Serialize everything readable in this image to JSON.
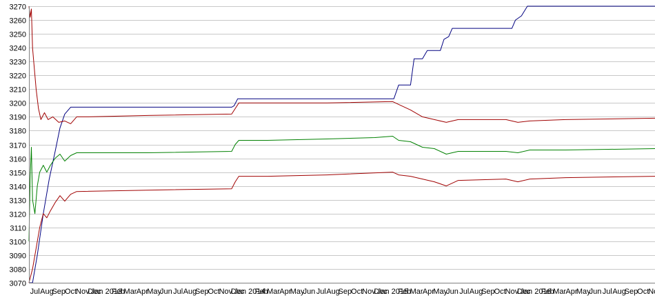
{
  "chart_data": {
    "type": "line",
    "title": "",
    "xlabel": "",
    "ylabel": "",
    "ylim": [
      3070,
      3270
    ],
    "ytick_step": 10,
    "grid": "horizontal",
    "legend": "none",
    "x_tick_labels": [
      "Jul",
      "Aug",
      "Sep",
      "Oct",
      "Nov",
      "Dec",
      "Jan 2013",
      "Feb",
      "Mar",
      "Apr",
      "May",
      "Jun",
      "Jul",
      "Aug",
      "Sep",
      "Oct",
      "Nov",
      "Dec",
      "Jan 2014",
      "Feb",
      "Mar",
      "Apr",
      "May",
      "Jun",
      "Jul",
      "Aug",
      "Sep",
      "Oct",
      "Nov",
      "Dec",
      "Jan 2015",
      "Feb",
      "Mar",
      "Apr",
      "May",
      "Jun",
      "Jul",
      "Aug",
      "Sep",
      "Oct",
      "Nov",
      "Dec",
      "Jan 2016",
      "Feb",
      "Mar",
      "Apr",
      "May",
      "Jun",
      "Jul",
      "Aug",
      "Sep",
      "Oct",
      "Nov"
    ],
    "x_range": [
      0,
      52.5
    ],
    "series": [
      {
        "color": "#000080",
        "points": [
          [
            0,
            3070
          ],
          [
            0.3,
            3070
          ],
          [
            0.7,
            3090
          ],
          [
            1.2,
            3120
          ],
          [
            1.7,
            3145
          ],
          [
            2.2,
            3165
          ],
          [
            2.6,
            3182
          ],
          [
            3.0,
            3192
          ],
          [
            3.5,
            3197
          ],
          [
            4,
            3197
          ],
          [
            10,
            3197
          ],
          [
            17,
            3197
          ],
          [
            17.2,
            3198
          ],
          [
            17.5,
            3203
          ],
          [
            18,
            3203
          ],
          [
            28,
            3203
          ],
          [
            30.6,
            3203
          ],
          [
            31,
            3213
          ],
          [
            32,
            3213
          ],
          [
            32.3,
            3232
          ],
          [
            33,
            3232
          ],
          [
            33.4,
            3238
          ],
          [
            34.5,
            3238
          ],
          [
            34.8,
            3246
          ],
          [
            35.2,
            3248
          ],
          [
            35.5,
            3254
          ],
          [
            40,
            3254
          ],
          [
            40.5,
            3254
          ],
          [
            40.8,
            3260
          ],
          [
            41.3,
            3263
          ],
          [
            41.8,
            3270
          ],
          [
            52.5,
            3270
          ]
        ]
      },
      {
        "color": "#a00000",
        "points": [
          [
            0,
            3270
          ],
          [
            0.1,
            3262
          ],
          [
            0.2,
            3268
          ],
          [
            0.3,
            3240
          ],
          [
            0.4,
            3230
          ],
          [
            0.6,
            3210
          ],
          [
            0.8,
            3196
          ],
          [
            1.0,
            3188
          ],
          [
            1.3,
            3193
          ],
          [
            1.6,
            3188
          ],
          [
            2.0,
            3190
          ],
          [
            2.5,
            3186
          ],
          [
            3.0,
            3187
          ],
          [
            3.5,
            3185
          ],
          [
            4,
            3190
          ],
          [
            5,
            3190
          ],
          [
            10,
            3191
          ],
          [
            17,
            3192
          ],
          [
            17.3,
            3196
          ],
          [
            17.6,
            3200
          ],
          [
            20,
            3200
          ],
          [
            25,
            3200
          ],
          [
            30.5,
            3201
          ],
          [
            31.0,
            3199
          ],
          [
            32.0,
            3195
          ],
          [
            33,
            3190
          ],
          [
            34,
            3188
          ],
          [
            35,
            3186
          ],
          [
            36,
            3188
          ],
          [
            40,
            3188
          ],
          [
            41,
            3186
          ],
          [
            42,
            3187
          ],
          [
            45,
            3188
          ],
          [
            52.5,
            3189
          ]
        ]
      },
      {
        "color": "#008000",
        "points": [
          [
            0,
            3100
          ],
          [
            0.1,
            3145
          ],
          [
            0.2,
            3168
          ],
          [
            0.3,
            3130
          ],
          [
            0.5,
            3120
          ],
          [
            0.7,
            3140
          ],
          [
            0.9,
            3150
          ],
          [
            1.2,
            3155
          ],
          [
            1.5,
            3150
          ],
          [
            1.8,
            3155
          ],
          [
            2.2,
            3160
          ],
          [
            2.6,
            3163
          ],
          [
            3.0,
            3158
          ],
          [
            3.5,
            3162
          ],
          [
            4,
            3164
          ],
          [
            10,
            3164
          ],
          [
            17,
            3165
          ],
          [
            17.3,
            3170
          ],
          [
            17.6,
            3173
          ],
          [
            20,
            3173
          ],
          [
            25,
            3174
          ],
          [
            29,
            3175
          ],
          [
            30.5,
            3176
          ],
          [
            31,
            3173
          ],
          [
            32,
            3172
          ],
          [
            33,
            3168
          ],
          [
            34,
            3167
          ],
          [
            35,
            3163
          ],
          [
            36,
            3165
          ],
          [
            40,
            3165
          ],
          [
            41,
            3164
          ],
          [
            42,
            3166
          ],
          [
            45,
            3166
          ],
          [
            52.5,
            3167
          ]
        ]
      },
      {
        "color": "#a00000",
        "points": [
          [
            0,
            3070
          ],
          [
            0.3,
            3080
          ],
          [
            0.6,
            3095
          ],
          [
            0.9,
            3110
          ],
          [
            1.2,
            3120
          ],
          [
            1.5,
            3117
          ],
          [
            1.8,
            3122
          ],
          [
            2.2,
            3128
          ],
          [
            2.6,
            3133
          ],
          [
            3.0,
            3129
          ],
          [
            3.5,
            3134
          ],
          [
            4,
            3136
          ],
          [
            10,
            3137
          ],
          [
            17,
            3138
          ],
          [
            17.3,
            3143
          ],
          [
            17.6,
            3147
          ],
          [
            20,
            3147
          ],
          [
            25,
            3148
          ],
          [
            30.5,
            3150
          ],
          [
            31,
            3148
          ],
          [
            32,
            3147
          ],
          [
            33,
            3145
          ],
          [
            34,
            3143
          ],
          [
            35,
            3140
          ],
          [
            36,
            3144
          ],
          [
            40,
            3145
          ],
          [
            41,
            3143
          ],
          [
            42,
            3145
          ],
          [
            45,
            3146
          ],
          [
            52.5,
            3147
          ]
        ]
      }
    ]
  }
}
